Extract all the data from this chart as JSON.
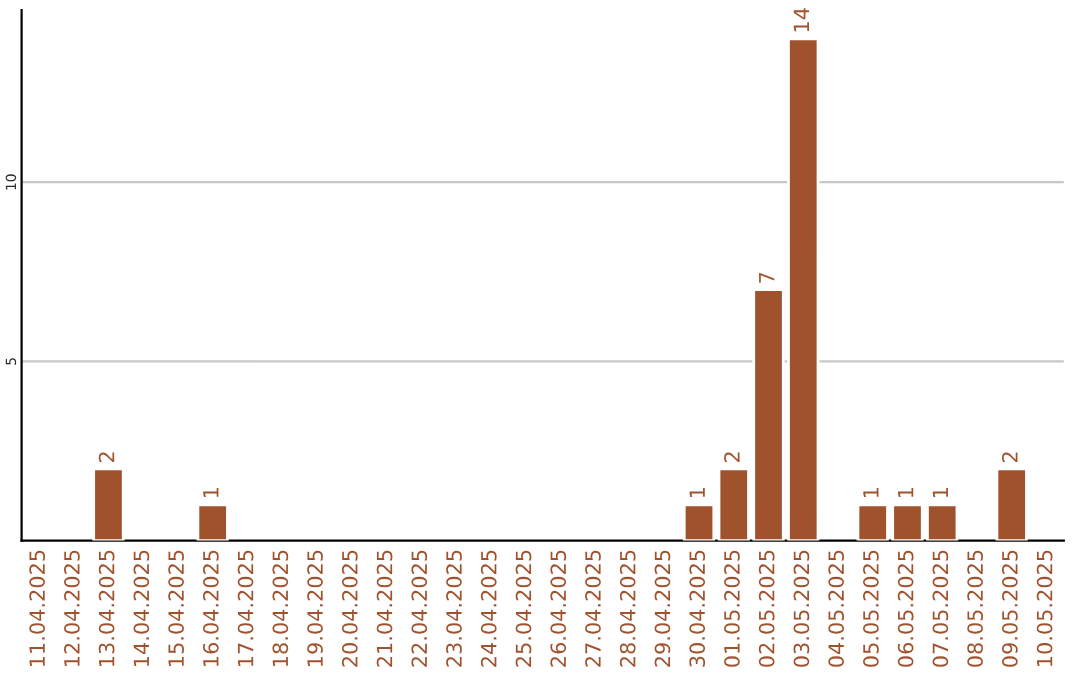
{
  "chart_data": {
    "type": "bar",
    "categories": [
      "11.04.2025",
      "12.04.2025",
      "13.04.2025",
      "14.04.2025",
      "15.04.2025",
      "16.04.2025",
      "17.04.2025",
      "18.04.2025",
      "19.04.2025",
      "20.04.2025",
      "21.04.2025",
      "22.04.2025",
      "23.04.2025",
      "24.04.2025",
      "25.04.2025",
      "26.04.2025",
      "27.04.2025",
      "28.04.2025",
      "29.04.2025",
      "30.04.2025",
      "01.05.2025",
      "02.05.2025",
      "03.05.2025",
      "04.05.2025",
      "05.05.2025",
      "06.05.2025",
      "07.05.2025",
      "08.05.2025",
      "09.05.2025",
      "10.05.2025"
    ],
    "values": [
      null,
      null,
      2,
      null,
      null,
      1,
      null,
      null,
      null,
      null,
      null,
      null,
      null,
      null,
      null,
      null,
      null,
      null,
      null,
      1,
      2,
      7,
      14,
      null,
      1,
      1,
      1,
      null,
      2,
      null
    ],
    "color": "#a0522d",
    "ylim": [
      0,
      14.8
    ],
    "yticks": [
      5,
      10
    ],
    "grid": "y",
    "data_labels": true
  }
}
